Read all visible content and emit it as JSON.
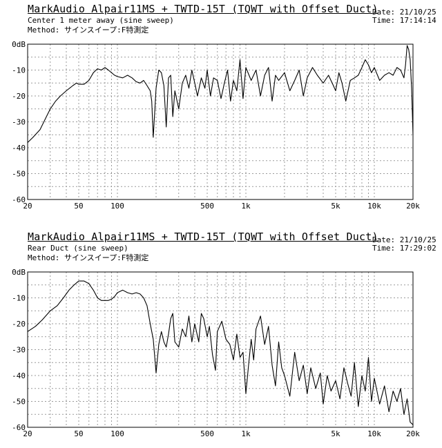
{
  "charts": [
    {
      "title": "MarkAudio Alpair11MS + TWTD-15T (TQWT with Offset Duct)",
      "subtitle": "Center 1 meter away (sine sweep)",
      "method": "Method: サインスイープ:F特測定",
      "date": "Date: 21/10/25",
      "time": "Time: 17:14:14"
    },
    {
      "title": "MarkAudio Alpair11MS + TWTD-15T (TQWT with Offset Duct)",
      "subtitle": "Rear Duct (sine sweep)",
      "method": "Method: サインスイープ:F特測定",
      "date": "Date: 21/10/25",
      "time": "Time: 17:29:02"
    }
  ],
  "chart_data": [
    {
      "type": "line",
      "title": "MarkAudio Alpair11MS + TWTD-15T (TQWT with Offset Duct)",
      "xlabel": "",
      "ylabel": "",
      "x_scale": "log",
      "xlim": [
        20,
        20000
      ],
      "ylim": [
        -60,
        0
      ],
      "x_ticks": [
        20,
        50,
        100,
        500,
        1000,
        5000,
        10000,
        20000
      ],
      "x_tick_labels": [
        "20",
        "50",
        "100",
        "500",
        "1k",
        "5k",
        "10k",
        "20k"
      ],
      "y_ticks": [
        0,
        -10,
        -20,
        -30,
        -40,
        -50,
        -60
      ],
      "y_tick_labels": [
        "0dB",
        "-10",
        "-20",
        "-30",
        "-40",
        "-50",
        "-60"
      ],
      "grid": true,
      "series": [
        {
          "x": [
            20,
            22,
            25,
            28,
            30,
            33,
            36,
            40,
            45,
            48,
            50,
            55,
            60,
            65,
            70,
            75,
            80,
            85,
            90,
            95,
            100,
            110,
            120,
            130,
            140,
            150,
            160,
            170,
            180,
            185,
            190,
            200,
            210,
            220,
            230,
            240,
            250,
            260,
            270,
            280,
            300,
            320,
            340,
            360,
            380,
            400,
            420,
            450,
            480,
            500,
            530,
            560,
            600,
            640,
            680,
            720,
            760,
            800,
            850,
            900,
            950,
            1000,
            1100,
            1200,
            1300,
            1400,
            1500,
            1600,
            1700,
            1800,
            2000,
            2200,
            2400,
            2600,
            2800,
            3000,
            3300,
            3600,
            4000,
            4400,
            4800,
            5000,
            5300,
            5600,
            6000,
            6500,
            7000,
            7500,
            8000,
            8500,
            9000,
            9500,
            10000,
            11000,
            12000,
            13000,
            14000,
            15000,
            16000,
            17000,
            17500,
            18000,
            18500,
            19000,
            19500,
            20000
          ],
          "y": [
            -38,
            -36,
            -33,
            -28,
            -25,
            -22,
            -20,
            -18,
            -16,
            -15,
            -15.5,
            -15.5,
            -14,
            -11,
            -9.5,
            -10,
            -9,
            -10,
            -11,
            -12,
            -12.5,
            -13,
            -12,
            -13,
            -14.5,
            -15,
            -14,
            -16,
            -18,
            -22,
            -36,
            -17,
            -10,
            -11,
            -16,
            -32,
            -13,
            -12,
            -28,
            -18,
            -25,
            -15,
            -12,
            -17,
            -10,
            -15,
            -20,
            -13,
            -17,
            -10,
            -20,
            -13,
            -14,
            -21,
            -15,
            -10,
            -22,
            -14,
            -18,
            -6,
            -21,
            -9,
            -14,
            -10,
            -20,
            -12,
            -9,
            -22,
            -12,
            -14,
            -11,
            -18,
            -14,
            -10,
            -20,
            -13,
            -9,
            -12,
            -15,
            -12,
            -16,
            -18,
            -11,
            -15,
            -22,
            -14,
            -13,
            -12,
            -9,
            -6,
            -8,
            -11,
            -9,
            -14,
            -12,
            -11,
            -12,
            -9,
            -10,
            -13,
            -8,
            -0.5,
            -2,
            -6,
            -17,
            -35
          ]
        }
      ]
    },
    {
      "type": "line",
      "title": "MarkAudio Alpair11MS + TWTD-15T (TQWT with Offset Duct)",
      "xlabel": "",
      "ylabel": "",
      "x_scale": "log",
      "xlim": [
        20,
        20000
      ],
      "ylim": [
        -60,
        0
      ],
      "x_ticks": [
        20,
        50,
        100,
        500,
        1000,
        5000,
        10000,
        20000
      ],
      "x_tick_labels": [
        "20",
        "50",
        "100",
        "500",
        "1k",
        "5k",
        "10k",
        "20k"
      ],
      "y_ticks": [
        0,
        -10,
        -20,
        -30,
        -40,
        -50,
        -60
      ],
      "y_tick_labels": [
        "0dB",
        "-10",
        "-20",
        "-30",
        "-40",
        "-50",
        "-60"
      ],
      "grid": true,
      "series": [
        {
          "x": [
            20,
            23,
            26,
            30,
            34,
            38,
            42,
            46,
            50,
            55,
            60,
            65,
            70,
            75,
            80,
            85,
            90,
            95,
            100,
            110,
            120,
            130,
            140,
            150,
            160,
            170,
            180,
            190,
            200,
            210,
            220,
            230,
            240,
            250,
            260,
            270,
            280,
            300,
            320,
            340,
            360,
            380,
            400,
            430,
            450,
            470,
            500,
            520,
            550,
            580,
            600,
            650,
            700,
            750,
            800,
            850,
            900,
            950,
            1000,
            1050,
            1100,
            1150,
            1200,
            1300,
            1400,
            1500,
            1600,
            1700,
            1800,
            1900,
            2000,
            2200,
            2400,
            2600,
            2800,
            3000,
            3200,
            3500,
            3800,
            4000,
            4300,
            4600,
            5000,
            5400,
            5800,
            6200,
            6600,
            7000,
            7500,
            8000,
            8500,
            9000,
            9500,
            10000,
            11000,
            12000,
            13000,
            14000,
            15000,
            16000,
            17000,
            18000,
            19000,
            20000
          ],
          "y": [
            -23,
            -21,
            -18.5,
            -15,
            -13,
            -10,
            -7,
            -5,
            -3.5,
            -3.5,
            -4.5,
            -7,
            -10,
            -11,
            -11,
            -11,
            -10.5,
            -9.5,
            -8,
            -7,
            -8,
            -8.5,
            -8,
            -8.5,
            -10,
            -13,
            -20,
            -26,
            -39,
            -28,
            -23,
            -27,
            -29,
            -24,
            -18,
            -16,
            -27,
            -29,
            -22,
            -25,
            -17,
            -27,
            -20,
            -27,
            -16,
            -18,
            -25,
            -21,
            -32,
            -38,
            -23,
            -19,
            -26,
            -28,
            -34,
            -24,
            -33,
            -31,
            -47,
            -36,
            -26,
            -34,
            -22,
            -17,
            -28,
            -21,
            -36,
            -44,
            -27,
            -37,
            -40,
            -48,
            -31,
            -42,
            -36,
            -47,
            -37,
            -45,
            -39,
            -51,
            -40,
            -46,
            -42,
            -49,
            -37,
            -43,
            -48,
            -35,
            -52,
            -40,
            -46,
            -33,
            -50,
            -41,
            -51,
            -44,
            -54,
            -46,
            -50,
            -45,
            -55,
            -49,
            -58,
            -59
          ]
        }
      ]
    }
  ]
}
